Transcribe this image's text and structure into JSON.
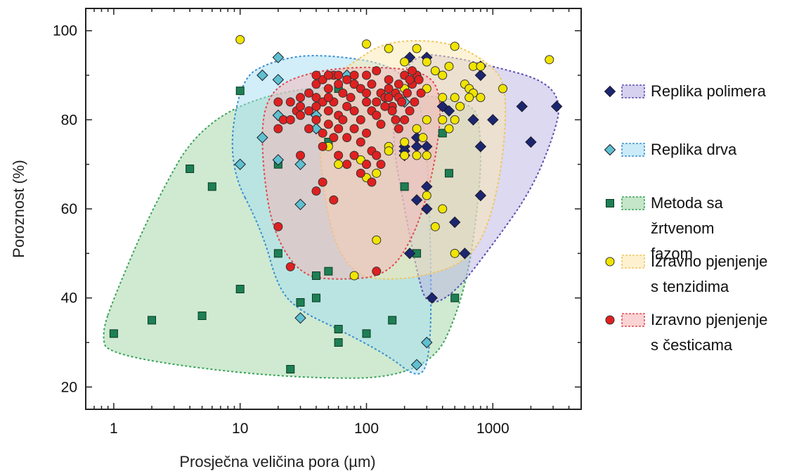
{
  "chart_data": {
    "type": "scatter",
    "xlabel": "Prosječna veličina pora  (µm)",
    "ylabel": "Poroznost  (%)",
    "x_scale": "log",
    "xlim": [
      0.6,
      5000
    ],
    "ylim": [
      15,
      105
    ],
    "x_ticks": [
      {
        "value": 1,
        "label": "1"
      },
      {
        "value": 10,
        "label": "10"
      },
      {
        "value": 100,
        "label": "100"
      },
      {
        "value": 1000,
        "label": "1000"
      }
    ],
    "y_ticks": [
      {
        "value": 20,
        "label": "20"
      },
      {
        "value": 40,
        "label": "40"
      },
      {
        "value": 60,
        "label": "60"
      },
      {
        "value": 80,
        "label": "80"
      },
      {
        "value": 100,
        "label": "100"
      }
    ],
    "grid": false,
    "legend_position": "right",
    "series": [
      {
        "name": "Metoda sa žrtvenom fazom",
        "legend_lines": [
          "Metoda sa",
          "žrtvenom",
          "fazom"
        ],
        "marker": "square",
        "color": "#1e7f55",
        "region_color": "#9fd6a4",
        "region_stroke": "#3aa35a",
        "region": [
          [
            0.8,
            32
          ],
          [
            0.9,
            27
          ],
          [
            20,
            22
          ],
          [
            300,
            22
          ],
          [
            600,
            40
          ],
          [
            800,
            65
          ],
          [
            800,
            78
          ],
          [
            700,
            84
          ],
          [
            200,
            86
          ],
          [
            30,
            88
          ],
          [
            5,
            80
          ],
          [
            2,
            60
          ],
          [
            1,
            40
          ]
        ],
        "points": [
          [
            1,
            32
          ],
          [
            2,
            35
          ],
          [
            4,
            69
          ],
          [
            5,
            36
          ],
          [
            6,
            65
          ],
          [
            10,
            42
          ],
          [
            10,
            86.5
          ],
          [
            20,
            70
          ],
          [
            20,
            50
          ],
          [
            25,
            24
          ],
          [
            30,
            39
          ],
          [
            40,
            45
          ],
          [
            40,
            40
          ],
          [
            50,
            46
          ],
          [
            50,
            75
          ],
          [
            60,
            33
          ],
          [
            60,
            30
          ],
          [
            60,
            87
          ],
          [
            100,
            32
          ],
          [
            160,
            35
          ],
          [
            200,
            65
          ],
          [
            250,
            50
          ],
          [
            400,
            77
          ],
          [
            450,
            68
          ],
          [
            500,
            40
          ]
        ]
      },
      {
        "name": "Replika drva",
        "legend_lines": [
          "Replika drva"
        ],
        "marker": "diamond",
        "color": "#5fc0cf",
        "region_color": "#a6ddf2",
        "region_stroke": "#3a8fd0",
        "region": [
          [
            8,
            70
          ],
          [
            10,
            89
          ],
          [
            17,
            93
          ],
          [
            40,
            95
          ],
          [
            200,
            92
          ],
          [
            300,
            80
          ],
          [
            330,
            40
          ],
          [
            310,
            25
          ],
          [
            250,
            22
          ],
          [
            150,
            27
          ],
          [
            60,
            33
          ],
          [
            30,
            37
          ],
          [
            20,
            42
          ],
          [
            15,
            55
          ]
        ],
        "points": [
          [
            10,
            70
          ],
          [
            15,
            90
          ],
          [
            15,
            76
          ],
          [
            20,
            94
          ],
          [
            20,
            89
          ],
          [
            20,
            81
          ],
          [
            20,
            71
          ],
          [
            30,
            70
          ],
          [
            30,
            61
          ],
          [
            30,
            35.5
          ],
          [
            40,
            81
          ],
          [
            40,
            78
          ],
          [
            70,
            90
          ],
          [
            200,
            84
          ],
          [
            300,
            30
          ],
          [
            250,
            25
          ]
        ]
      },
      {
        "name": "Replika polimera",
        "legend_lines": [
          "Replika polimera"
        ],
        "marker": "diamond",
        "color": "#1c2670",
        "region_color": "#b9b3e3",
        "region_stroke": "#5b4fb0",
        "region": [
          [
            170,
            88
          ],
          [
            250,
            95
          ],
          [
            500,
            94
          ],
          [
            1000,
            92
          ],
          [
            2500,
            89
          ],
          [
            3500,
            84
          ],
          [
            3000,
            76
          ],
          [
            2000,
            64
          ],
          [
            1000,
            52
          ],
          [
            500,
            41
          ],
          [
            300,
            38
          ],
          [
            250,
            46
          ],
          [
            200,
            60
          ],
          [
            160,
            75
          ]
        ],
        "points": [
          [
            220,
            94
          ],
          [
            300,
            94
          ],
          [
            200,
            74
          ],
          [
            200,
            73
          ],
          [
            200,
            72
          ],
          [
            250,
            76
          ],
          [
            250,
            74
          ],
          [
            300,
            74
          ],
          [
            250,
            62
          ],
          [
            300,
            65
          ],
          [
            300,
            60
          ],
          [
            220,
            50
          ],
          [
            330,
            40
          ],
          [
            500,
            57
          ],
          [
            600,
            50
          ],
          [
            700,
            80
          ],
          [
            800,
            90
          ],
          [
            800,
            74
          ],
          [
            800,
            63
          ],
          [
            1000,
            80
          ],
          [
            1700,
            83
          ],
          [
            2000,
            75
          ],
          [
            3200,
            83
          ],
          [
            450,
            82
          ],
          [
            400,
            83
          ],
          [
            800,
            92
          ]
        ]
      },
      {
        "name": "Izravno pjenjenje s tenzidima",
        "legend_lines": [
          "Izravno pjenjenje",
          "s tenzidima"
        ],
        "marker": "circle",
        "color": "#f0e400",
        "region_color": "#fbe7b0",
        "region_stroke": "#f2c65c",
        "region": [
          [
            40,
            80
          ],
          [
            45,
            88
          ],
          [
            80,
            93
          ],
          [
            130,
            97
          ],
          [
            250,
            98
          ],
          [
            500,
            97
          ],
          [
            900,
            93
          ],
          [
            1300,
            88
          ],
          [
            1200,
            70
          ],
          [
            900,
            55
          ],
          [
            600,
            48
          ],
          [
            300,
            45
          ],
          [
            150,
            44
          ],
          [
            80,
            45
          ],
          [
            50,
            55
          ]
        ],
        "points": [
          [
            10,
            98
          ],
          [
            100,
            97
          ],
          [
            150,
            96
          ],
          [
            250,
            96
          ],
          [
            500,
            96.5
          ],
          [
            2800,
            93.5
          ],
          [
            200,
            93
          ],
          [
            300,
            93
          ],
          [
            350,
            91
          ],
          [
            400,
            90
          ],
          [
            450,
            92
          ],
          [
            700,
            92
          ],
          [
            800,
            92
          ],
          [
            250,
            90
          ],
          [
            600,
            88
          ],
          [
            650,
            87
          ],
          [
            700,
            86
          ],
          [
            1200,
            87
          ],
          [
            200,
            87
          ],
          [
            300,
            87
          ],
          [
            400,
            85
          ],
          [
            500,
            85
          ],
          [
            550,
            83
          ],
          [
            650,
            85
          ],
          [
            800,
            85
          ],
          [
            300,
            80
          ],
          [
            400,
            80
          ],
          [
            500,
            80
          ],
          [
            450,
            78
          ],
          [
            250,
            78
          ],
          [
            280,
            76
          ],
          [
            200,
            75
          ],
          [
            150,
            74
          ],
          [
            150,
            73
          ],
          [
            200,
            72
          ],
          [
            250,
            72
          ],
          [
            300,
            72
          ],
          [
            100,
            70
          ],
          [
            90,
            71
          ],
          [
            50,
            74
          ],
          [
            60,
            70
          ],
          [
            100,
            67
          ],
          [
            120,
            68
          ],
          [
            300,
            63
          ],
          [
            400,
            60
          ],
          [
            350,
            56
          ],
          [
            120,
            53
          ],
          [
            500,
            50
          ],
          [
            80,
            45
          ]
        ]
      },
      {
        "name": "Izravno pjenjenje s česticama",
        "legend_lines": [
          "Izravno pjenjenje",
          "s česticama"
        ],
        "marker": "circle",
        "color": "#e02020",
        "region_color": "#f6b5b8",
        "region_stroke": "#e04a50",
        "region": [
          [
            15,
            82
          ],
          [
            20,
            88
          ],
          [
            40,
            91
          ],
          [
            100,
            92
          ],
          [
            300,
            91
          ],
          [
            400,
            85
          ],
          [
            350,
            70
          ],
          [
            250,
            55
          ],
          [
            150,
            45
          ],
          [
            60,
            44
          ],
          [
            30,
            45
          ],
          [
            18,
            55
          ],
          [
            15,
            70
          ]
        ],
        "points": [
          [
            20,
            84
          ],
          [
            22,
            80
          ],
          [
            25,
            84
          ],
          [
            28,
            82
          ],
          [
            30,
            83
          ],
          [
            35,
            86
          ],
          [
            40,
            88
          ],
          [
            45,
            89
          ],
          [
            50,
            87
          ],
          [
            55,
            90
          ],
          [
            60,
            88
          ],
          [
            65,
            86
          ],
          [
            70,
            89
          ],
          [
            75,
            85
          ],
          [
            80,
            88
          ],
          [
            90,
            87
          ],
          [
            100,
            86
          ],
          [
            110,
            88
          ],
          [
            120,
            84
          ],
          [
            130,
            86
          ],
          [
            140,
            85
          ],
          [
            150,
            87
          ],
          [
            160,
            83
          ],
          [
            170,
            86
          ],
          [
            180,
            85
          ],
          [
            40,
            90
          ],
          [
            50,
            90
          ],
          [
            60,
            90
          ],
          [
            80,
            90
          ],
          [
            100,
            90
          ],
          [
            120,
            91
          ],
          [
            40,
            85
          ],
          [
            45,
            84
          ],
          [
            50,
            82
          ],
          [
            55,
            84
          ],
          [
            60,
            81
          ],
          [
            65,
            80
          ],
          [
            70,
            83
          ],
          [
            80,
            82
          ],
          [
            90,
            80
          ],
          [
            100,
            84
          ],
          [
            110,
            82
          ],
          [
            120,
            81
          ],
          [
            130,
            79
          ],
          [
            25,
            80
          ],
          [
            30,
            81
          ],
          [
            35,
            78
          ],
          [
            40,
            80
          ],
          [
            45,
            77
          ],
          [
            50,
            79
          ],
          [
            55,
            76
          ],
          [
            60,
            78
          ],
          [
            70,
            76
          ],
          [
            80,
            78
          ],
          [
            90,
            75
          ],
          [
            100,
            77
          ],
          [
            110,
            73
          ],
          [
            120,
            72
          ],
          [
            130,
            70
          ],
          [
            60,
            72
          ],
          [
            70,
            70
          ],
          [
            80,
            72
          ],
          [
            90,
            68
          ],
          [
            100,
            70
          ],
          [
            110,
            66
          ],
          [
            45,
            74
          ],
          [
            40,
            64
          ],
          [
            45,
            66
          ],
          [
            55,
            62
          ],
          [
            20,
            78
          ],
          [
            20,
            56
          ],
          [
            25,
            47
          ],
          [
            120,
            46
          ],
          [
            30,
            72
          ],
          [
            150,
            85
          ],
          [
            160,
            82
          ],
          [
            170,
            80
          ],
          [
            180,
            78
          ],
          [
            190,
            84
          ],
          [
            200,
            80
          ],
          [
            210,
            86
          ],
          [
            220,
            82
          ],
          [
            230,
            88
          ],
          [
            240,
            84
          ],
          [
            250,
            90
          ],
          [
            260,
            89
          ],
          [
            270,
            86
          ],
          [
            180,
            88
          ],
          [
            150,
            89
          ],
          [
            140,
            83
          ],
          [
            35,
            82
          ],
          [
            30,
            85
          ],
          [
            40,
            83
          ],
          [
            50,
            85
          ],
          [
            200,
            90
          ],
          [
            220,
            89
          ],
          [
            230,
            91
          ]
        ]
      }
    ]
  }
}
